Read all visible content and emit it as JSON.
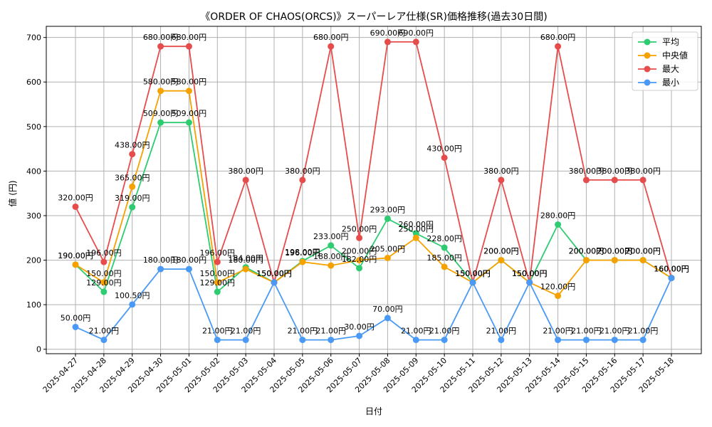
{
  "chart_data": {
    "type": "line",
    "title": "《ORDER OF CHAOS(ORCS)》スーパーレア仕様(SR)価格推移(過去30日間)",
    "xlabel": "日付",
    "ylabel": "値 (円)",
    "ylim": [
      -10,
      725
    ],
    "yticks": [
      0,
      100,
      200,
      300,
      400,
      500,
      600,
      700
    ],
    "grid": true,
    "legend_position": "top-right",
    "value_suffix": "円",
    "categories": [
      "2025-04-27",
      "2025-04-28",
      "2025-04-29",
      "2025-04-30",
      "2025-05-01",
      "2025-05-02",
      "2025-05-03",
      "2025-05-04",
      "2025-05-05",
      "2025-05-06",
      "2025-05-07",
      "2025-05-08",
      "2025-05-09",
      "2025-05-10",
      "2025-05-11",
      "2025-05-12",
      "2025-05-13",
      "2025-05-14",
      "2025-05-15",
      "2025-05-16",
      "2025-05-17",
      "2025-05-18"
    ],
    "series": [
      {
        "name": "平均",
        "color": "#2ecc71",
        "values": [
          190,
          129,
          319,
          509,
          509,
          129,
          184,
          150,
          198,
          233,
          182,
          293,
          260,
          228,
          150,
          200,
          150,
          280,
          200,
          200,
          200,
          160
        ]
      },
      {
        "name": "中央値",
        "color": "#f5a200",
        "values": [
          190,
          150,
          365,
          580,
          580,
          150,
          180,
          150,
          196,
          188,
          200,
          205,
          250,
          185,
          150,
          200,
          150,
          120,
          200,
          200,
          200,
          160
        ]
      },
      {
        "name": "最大",
        "color": "#e74c4c",
        "values": [
          320,
          196,
          438,
          680,
          680,
          196,
          380,
          150,
          380,
          680,
          250,
          690,
          690,
          430,
          150,
          380,
          150,
          680,
          380,
          380,
          380,
          160
        ]
      },
      {
        "name": "最小",
        "color": "#4a9af5",
        "values": [
          50,
          21,
          100.5,
          180,
          180,
          21,
          21,
          150,
          21,
          21,
          30,
          70,
          21,
          21,
          150,
          21,
          150,
          21,
          21,
          21,
          21,
          160
        ]
      }
    ]
  }
}
